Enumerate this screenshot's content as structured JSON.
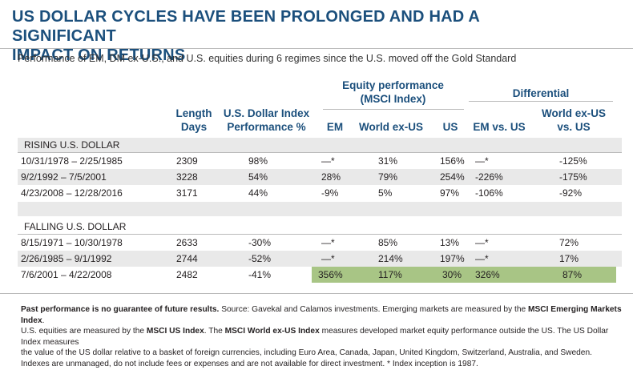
{
  "title_line1": "US DOLLAR CYCLES HAVE BEEN PROLONGED AND HAD A SIGNIFICANT",
  "title_line2": "IMPACT ON RETURNS",
  "subtitle": "Performance of EM, DM ex-U.S., and U.S. equities during 6 regimes since the U.S. moved off the Gold Standard",
  "header": {
    "length_line1": "Length",
    "length_line2": "Days",
    "usd_line1": "U.S. Dollar Index",
    "usd_line2": "Performance %",
    "equity_line1": "Equity performance",
    "equity_line2": "(MSCI Index)",
    "diff_group": "Differential",
    "em": "EM",
    "world": "World ex-US",
    "us": "US",
    "em_vs_us": "EM vs. US",
    "world_vs_us_line1": "World ex-US",
    "world_vs_us_line2": "vs. US"
  },
  "rising": {
    "label": "RISING U.S. DOLLAR",
    "rows": [
      {
        "period": "10/31/1978 – 2/25/1985",
        "length": "2309",
        "usd": "98%",
        "em": "—*",
        "world": "31%",
        "us": "156%",
        "em_vs_us": "—*",
        "world_vs_us": "-125%"
      },
      {
        "period": "9/2/1992 – 7/5/2001",
        "length": "3228",
        "usd": "54%",
        "em": "28%",
        "world": "79%",
        "us": "254%",
        "em_vs_us": "-226%",
        "world_vs_us": "-175%"
      },
      {
        "period": "4/23/2008 – 12/28/2016",
        "length": "3171",
        "usd": "44%",
        "em": "-9%",
        "world": "5%",
        "us": "97%",
        "em_vs_us": "-106%",
        "world_vs_us": "-92%"
      }
    ]
  },
  "falling": {
    "label": "FALLING U.S. DOLLAR",
    "rows": [
      {
        "period": "8/15/1971 – 10/30/1978",
        "length": "2633",
        "usd": "-30%",
        "em": "—*",
        "world": "85%",
        "us": "13%",
        "em_vs_us": "—*",
        "world_vs_us": "72%"
      },
      {
        "period": "2/26/1985 – 9/1/1992",
        "length": "2744",
        "usd": "-52%",
        "em": "—*",
        "world": "214%",
        "us": "197%",
        "em_vs_us": "—*",
        "world_vs_us": "17%"
      },
      {
        "period": "7/6/2001 – 4/22/2008",
        "length": "2482",
        "usd": "-41%",
        "em": "356%",
        "world": "117%",
        "us": "30%",
        "em_vs_us": "326%",
        "world_vs_us": "87%"
      }
    ]
  },
  "footnote": {
    "bold1": "Past performance is no guarantee of future results.",
    "text1": " Source: Gavekal and Calamos investments. Emerging markets are measured by the ",
    "bold2": "MSCI Emerging Markets Index",
    "text2": ".",
    "text3": "U.S. equities are measured by the ",
    "bold3": "MSCI US Index",
    "text4": ". The ",
    "bold4": "MSCI World ex-US Index",
    "text5": " measures developed market equity performance outside the US. The US Dollar Index measures",
    "text6": "the value of the US dollar relative to a basket of foreign currencies, including Euro Area, Canada, Japan, United Kingdom, Switzerland, Australia, and Sweden.",
    "text7": "Indexes are unmanaged, do not include fees or expenses and are not available for direct investment. * Index inception is 1987."
  },
  "colors": {
    "title": "#1b4f7c",
    "band": "#e9e9e9",
    "highlight": "#a8c585"
  }
}
